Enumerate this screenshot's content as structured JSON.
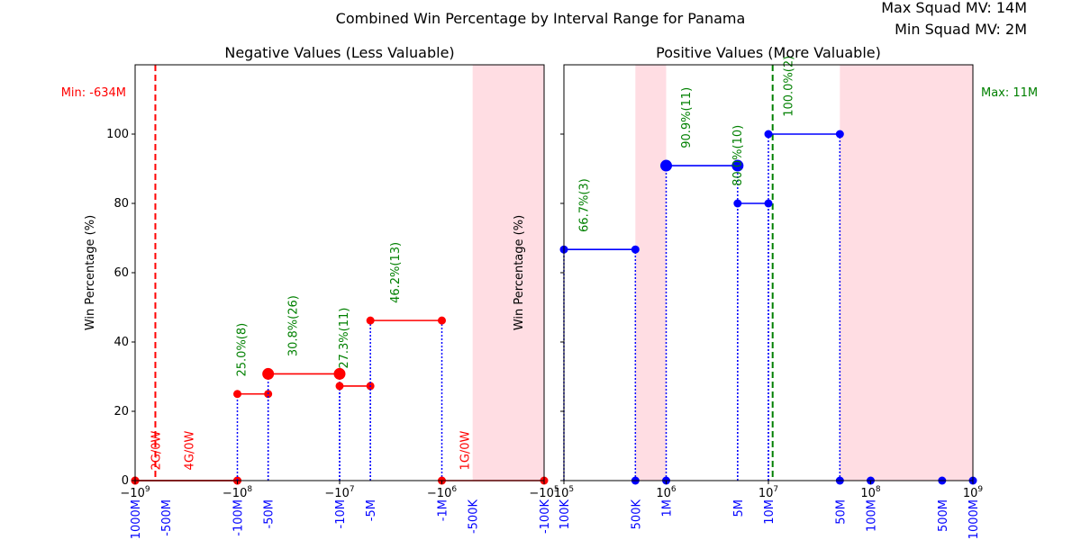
{
  "title": "Combined Win Percentage by Interval Range for Panama",
  "info": {
    "max_label": "Max Squad MV: 14M",
    "min_label": "Min Squad MV: 2M"
  },
  "colors": {
    "neg": "#ff0000",
    "pos": "#0000ff",
    "label_green": "#008000",
    "label_red": "#ff0000",
    "shade": "#ffdde3",
    "vline": "#0000ff"
  },
  "chart_data": [
    {
      "type": "line",
      "title": "Negative Values (Less Valuable)",
      "ylabel": "Win Percentage (%)",
      "xscale": "symlog-negative",
      "xlim": [
        -1000000000,
        -100000
      ],
      "ylim": [
        0,
        120
      ],
      "yticks": [
        0,
        20,
        40,
        60,
        80,
        100
      ],
      "xticks": [
        {
          "value": -1000000000,
          "label": "−10^9"
        },
        {
          "value": -100000000,
          "label": "−10^8"
        },
        {
          "value": -10000000,
          "label": "−10^7"
        },
        {
          "value": -1000000,
          "label": "−10^6"
        },
        {
          "value": -100000,
          "label": "−10^5"
        }
      ],
      "interval_labels": [
        {
          "value": -1000000000,
          "label": "-1000M"
        },
        {
          "value": -500000000,
          "label": "-500M"
        },
        {
          "value": -100000000,
          "label": "-100M"
        },
        {
          "value": -50000000,
          "label": "-50M"
        },
        {
          "value": -10000000,
          "label": "-10M"
        },
        {
          "value": -5000000,
          "label": "-5M"
        },
        {
          "value": -1000000,
          "label": "-1M"
        },
        {
          "value": -500000,
          "label": "-500K"
        },
        {
          "value": -100000,
          "label": "-100K"
        }
      ],
      "segments": [
        {
          "x0": -1000000000,
          "x1": -100000000,
          "y": 0,
          "label": "2G/0W",
          "label_color": "red",
          "label_x": -634000000,
          "label_y": 3
        },
        {
          "x0": -1000000000,
          "x1": -100000000,
          "y": 0,
          "label": "4G/0W",
          "label_color": "red",
          "label_x": -300000000,
          "label_y": 3
        },
        {
          "x0": -100000000,
          "x1": -50000000,
          "y": 25.0,
          "label": "25.0%(8)",
          "label_color": "green"
        },
        {
          "x0": -50000000,
          "x1": -10000000,
          "y": 30.8,
          "label": "30.8%(26)",
          "label_color": "green",
          "big": true
        },
        {
          "x0": -10000000,
          "x1": -5000000,
          "y": 27.3,
          "label": "27.3%(11)",
          "label_color": "green"
        },
        {
          "x0": -5000000,
          "x1": -1000000,
          "y": 46.2,
          "label": "46.2%(13)",
          "label_color": "green"
        },
        {
          "x0": -1000000,
          "x1": -100000,
          "y": 0,
          "label": "1G/0W",
          "label_color": "red",
          "label_x": -600000,
          "label_y": 3
        }
      ],
      "shade": [
        [
          -500000,
          -100000
        ]
      ],
      "refline": {
        "value": -634000000,
        "label": "Min: -634M",
        "color": "#ff0000"
      }
    },
    {
      "type": "line",
      "title": "Positive Values (More Valuable)",
      "ylabel": "Win Percentage (%)",
      "xscale": "log",
      "xlim": [
        100000,
        1000000000
      ],
      "ylim": [
        0,
        120
      ],
      "yticks": [
        0,
        20,
        40,
        60,
        80,
        100
      ],
      "xticks": [
        {
          "value": 100000,
          "label": "10^5"
        },
        {
          "value": 1000000,
          "label": "10^6"
        },
        {
          "value": 10000000,
          "label": "10^7"
        },
        {
          "value": 100000000,
          "label": "10^8"
        },
        {
          "value": 1000000000,
          "label": "10^9"
        }
      ],
      "interval_labels": [
        {
          "value": 100000,
          "label": "100K"
        },
        {
          "value": 500000,
          "label": "500K"
        },
        {
          "value": 1000000,
          "label": "1M"
        },
        {
          "value": 5000000,
          "label": "5M"
        },
        {
          "value": 10000000,
          "label": "10M"
        },
        {
          "value": 50000000,
          "label": "50M"
        },
        {
          "value": 100000000,
          "label": "100M"
        },
        {
          "value": 500000000,
          "label": "500M"
        },
        {
          "value": 1000000000,
          "label": "1000M"
        }
      ],
      "segments": [
        {
          "x0": 100000,
          "x1": 500000,
          "y": 66.7,
          "label": "66.7%(3)",
          "label_color": "green"
        },
        {
          "x0": 1000000,
          "x1": 5000000,
          "y": 90.9,
          "label": "90.9%(11)",
          "label_color": "green",
          "big": true
        },
        {
          "x0": 5000000,
          "x1": 10000000,
          "y": 80.0,
          "label": "80.0%(10)",
          "label_color": "green"
        },
        {
          "x0": 10000000,
          "x1": 50000000,
          "y": 100.0,
          "label": "100.0%(2)",
          "label_color": "green"
        }
      ],
      "zero_points": [
        500000,
        1000000,
        50000000,
        100000000,
        500000000,
        1000000000
      ],
      "shade": [
        [
          500000,
          1000000
        ],
        [
          50000000,
          1000000000
        ]
      ],
      "refline": {
        "value": 11000000,
        "label": "Max: 11M",
        "color": "#008000"
      }
    }
  ]
}
